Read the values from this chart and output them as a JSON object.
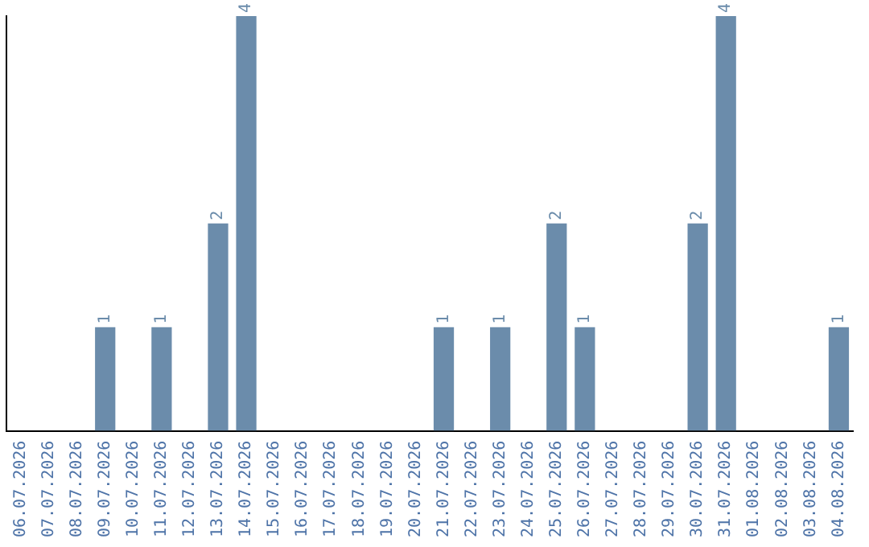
{
  "chart_data": {
    "type": "bar",
    "categories": [
      "06.07.2026",
      "07.07.2026",
      "08.07.2026",
      "09.07.2026",
      "10.07.2026",
      "11.07.2026",
      "12.07.2026",
      "13.07.2026",
      "14.07.2026",
      "15.07.2026",
      "16.07.2026",
      "17.07.2026",
      "18.07.2026",
      "19.07.2026",
      "20.07.2026",
      "21.07.2026",
      "22.07.2026",
      "23.07.2026",
      "24.07.2026",
      "25.07.2026",
      "26.07.2026",
      "27.07.2026",
      "28.07.2026",
      "29.07.2026",
      "30.07.2026",
      "31.07.2026",
      "01.08.2026",
      "02.08.2026",
      "03.08.2026",
      "04.08.2026"
    ],
    "values": [
      0,
      0,
      0,
      1,
      0,
      1,
      0,
      2,
      4,
      0,
      0,
      0,
      0,
      0,
      0,
      1,
      0,
      1,
      0,
      2,
      1,
      0,
      0,
      0,
      2,
      4,
      0,
      0,
      0,
      1
    ],
    "value_labels": [
      null,
      null,
      null,
      "1",
      null,
      "1",
      null,
      "2",
      "4",
      null,
      null,
      null,
      null,
      null,
      null,
      "1",
      null,
      "1",
      null,
      "2",
      "1",
      null,
      null,
      null,
      "2",
      "4",
      null,
      null,
      null,
      "1"
    ],
    "color": "#6b8cab",
    "ylim": [
      0,
      4
    ],
    "tick_labels": "x",
    "grid": false,
    "legend": false
  }
}
